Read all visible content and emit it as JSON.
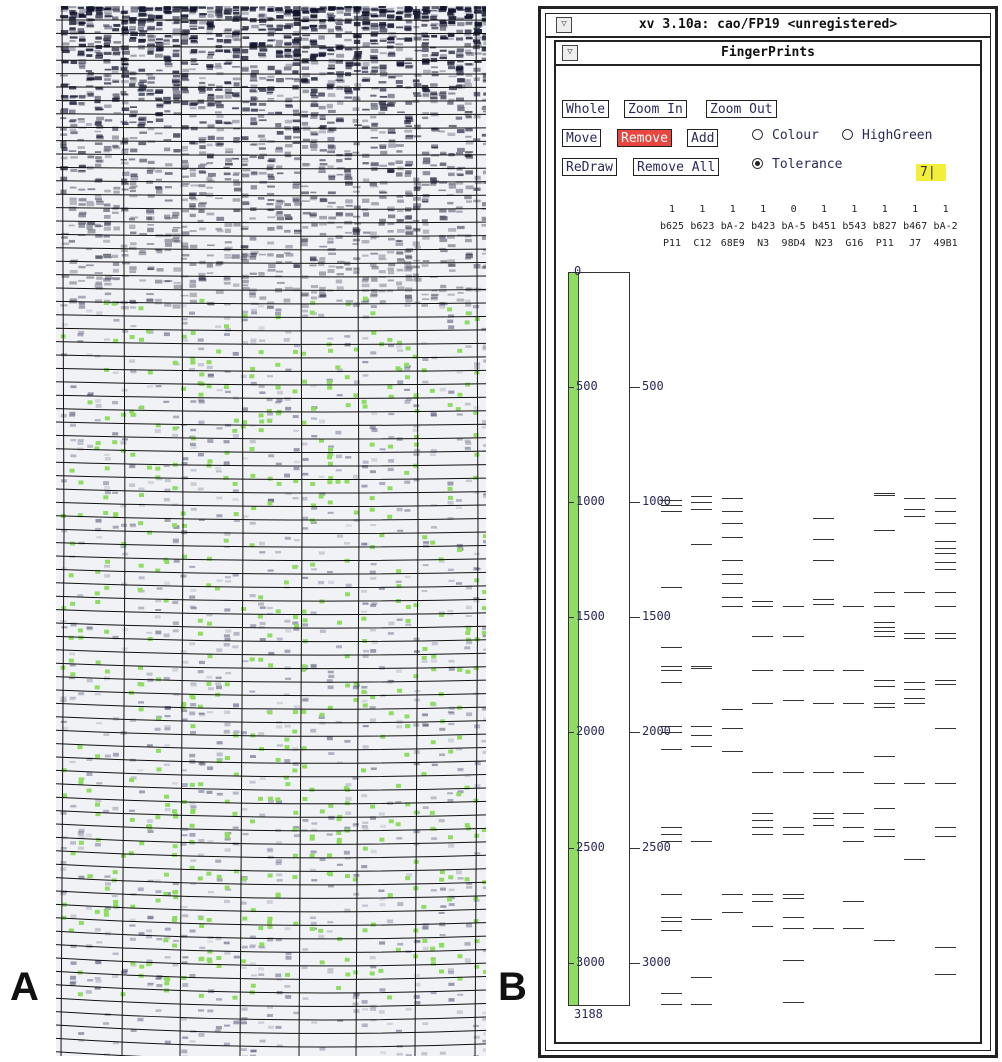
{
  "panels": {
    "a_label": "A",
    "b_label": "B"
  },
  "xv_window": {
    "title": "xv 3.10a: cao/FP19 <unregistered>",
    "fingerprints_title": "FingerPrints",
    "menu_button": "▽"
  },
  "toolbar": {
    "whole": "Whole",
    "zoom_in": "Zoom In",
    "zoom_out": "Zoom Out",
    "move": "Move",
    "remove": "Remove",
    "add": "Add",
    "redraw": "ReDraw",
    "remove_all": "Remove All"
  },
  "options": {
    "colour": {
      "label": "Colour",
      "selected": false
    },
    "highgreen": {
      "label": "HighGreen",
      "selected": false
    },
    "tolerance": {
      "label": "Tolerance",
      "selected": true,
      "value": "7|"
    }
  },
  "clones": [
    {
      "flag": "1",
      "name": "b625",
      "id": "P11",
      "bands": [
        990,
        1010,
        1040,
        1370,
        1630,
        1710,
        1730,
        1780,
        1970,
        2000,
        2070,
        2410,
        2440,
        2470,
        2700,
        2800,
        2820,
        2860,
        3130,
        3180
      ]
    },
    {
      "flag": "1",
      "name": "b623",
      "id": "C12",
      "bands": [
        975,
        1000,
        1030,
        1180,
        1710,
        1720,
        1970,
        2010,
        2060,
        2470,
        2810,
        3060,
        3180
      ]
    },
    {
      "flag": "1",
      "name": "bA-2",
      "id": "68E9",
      "bands": [
        980,
        1040,
        1090,
        1150,
        1250,
        1310,
        1350,
        1410,
        1450,
        1900,
        1980,
        2080,
        2700,
        2780
      ]
    },
    {
      "flag": "1",
      "name": "b423",
      "id": "N3",
      "bands": [
        1430,
        1450,
        1580,
        1730,
        1870,
        2170,
        2350,
        2380,
        2410,
        2440,
        2700,
        2730,
        2840
      ]
    },
    {
      "flag": "0",
      "name": "bA-5",
      "id": "98D4",
      "bands": [
        1450,
        1580,
        1730,
        1860,
        2170,
        2410,
        2440,
        2700,
        2720,
        2800,
        2850,
        2990,
        3170
      ]
    },
    {
      "flag": "1",
      "name": "b451",
      "id": "N23",
      "bands": [
        1070,
        1160,
        1250,
        1420,
        1440,
        1730,
        1870,
        2170,
        2350,
        2370,
        2400,
        2850
      ]
    },
    {
      "flag": "1",
      "name": "b543",
      "id": "G16",
      "bands": [
        1450,
        1730,
        1870,
        2170,
        2350,
        2410,
        2470,
        2730,
        2850
      ]
    },
    {
      "flag": "1",
      "name": "b827",
      "id": "P11",
      "bands": [
        960,
        970,
        1120,
        1390,
        1450,
        1520,
        1540,
        1560,
        1580,
        1770,
        1800,
        1870,
        1890,
        2100,
        2220,
        2330,
        2420,
        2450,
        2900
      ]
    },
    {
      "flag": "1",
      "name": "b467",
      "id": "J7",
      "bands": [
        980,
        1030,
        1060,
        1390,
        1570,
        1590,
        1780,
        1810,
        1850,
        1870,
        2220,
        2550
      ]
    },
    {
      "flag": "1",
      "name": "bA-2",
      "id": "49B1",
      "bands": [
        980,
        1040,
        1090,
        1170,
        1200,
        1220,
        1260,
        1290,
        1390,
        1450,
        1570,
        1590,
        1770,
        1790,
        1980,
        2220,
        2410,
        2450,
        2930,
        3050
      ]
    }
  ],
  "ruler": {
    "min": "0",
    "max": "3188",
    "max_value": 3188,
    "labels": [
      "500",
      "1000",
      "1500",
      "2000",
      "2500",
      "3000"
    ],
    "values": [
      500,
      1000,
      1500,
      2000,
      2500,
      3000
    ],
    "bar_color": "#8fdc63"
  },
  "colors": {
    "remove_active": "#e8473f",
    "tolerance_bg": "#f2ee3a",
    "spot_green": "#8fdc63"
  }
}
